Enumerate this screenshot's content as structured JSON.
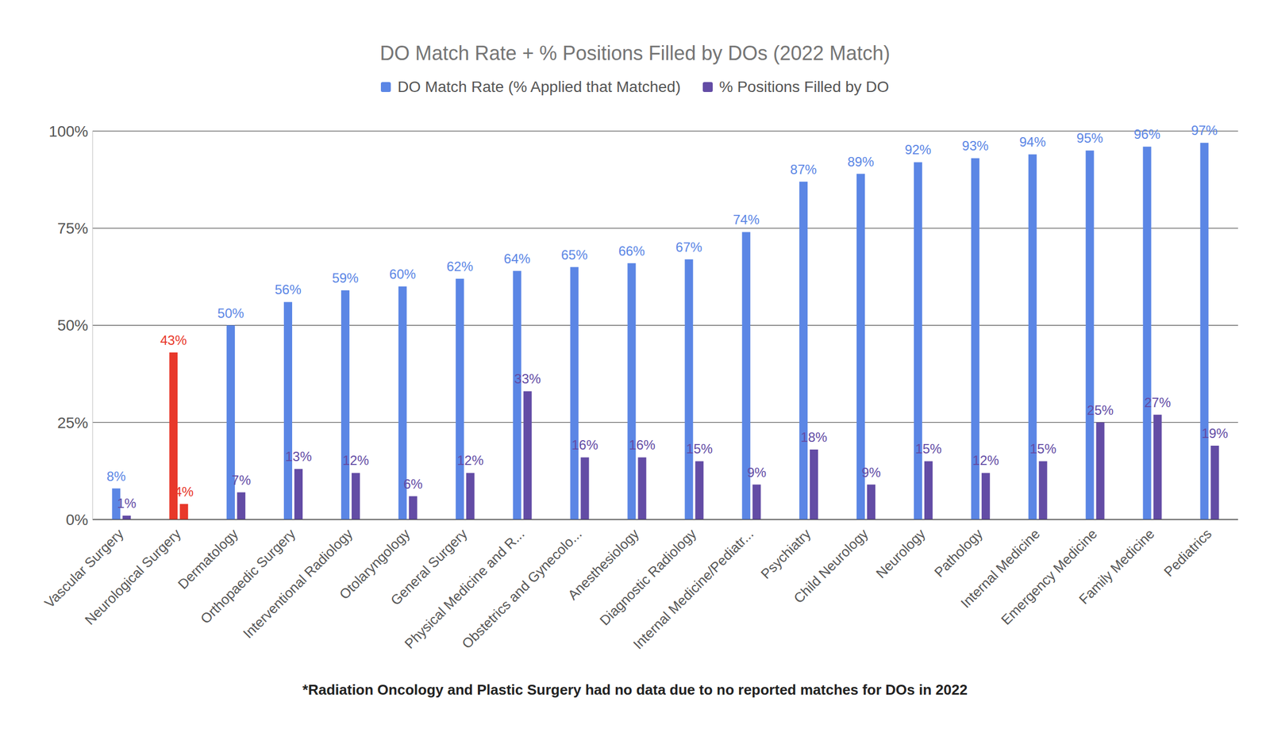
{
  "chart_data": {
    "type": "bar",
    "title": "DO Match Rate + % Positions Filled by DOs (2022 Match)",
    "categories": [
      "Vascular Surgery",
      "Neurological Surgery",
      "Dermatology",
      "Orthopaedic Surgery",
      "Interventional Radiology",
      "Otolaryngology",
      "General Surgery",
      "Physical Medicine and R...",
      "Obstetrics and Gynecolo...",
      "Anesthesiology",
      "Diagnostic Radiology",
      "Internal Medicine/Pediatr...",
      "Psychiatry",
      "Child Neurology",
      "Neurology",
      "Pathology",
      "Internal Medicine",
      "Emergency Medicine",
      "Family Medicine",
      "Pediatrics"
    ],
    "series": [
      {
        "name": "DO Match Rate (% Applied that Matched)",
        "color": "#5b86e5",
        "colors": [
          "#5b86e5",
          "#e8382a",
          "#5b86e5",
          "#5b86e5",
          "#5b86e5",
          "#5b86e5",
          "#5b86e5",
          "#5b86e5",
          "#5b86e5",
          "#5b86e5",
          "#5b86e5",
          "#5b86e5",
          "#5b86e5",
          "#5b86e5",
          "#5b86e5",
          "#5b86e5",
          "#5b86e5",
          "#5b86e5",
          "#5b86e5",
          "#5b86e5"
        ],
        "values": [
          8,
          43,
          50,
          56,
          59,
          60,
          62,
          64,
          65,
          66,
          67,
          74,
          87,
          89,
          92,
          93,
          94,
          95,
          96,
          97
        ],
        "value_labels": [
          "8%",
          "43%",
          "50%",
          "56%",
          "59%",
          "60%",
          "62%",
          "64%",
          "65%",
          "66%",
          "67%",
          "74%",
          "87%",
          "89%",
          "92%",
          "93%",
          "94%",
          "95%",
          "96%",
          "97%"
        ]
      },
      {
        "name": "% Positions Filled by DO",
        "color": "#634ca5",
        "colors": [
          "#634ca5",
          "#e8382a",
          "#634ca5",
          "#634ca5",
          "#634ca5",
          "#634ca5",
          "#634ca5",
          "#634ca5",
          "#634ca5",
          "#634ca5",
          "#634ca5",
          "#634ca5",
          "#634ca5",
          "#634ca5",
          "#634ca5",
          "#634ca5",
          "#634ca5",
          "#634ca5",
          "#634ca5",
          "#634ca5"
        ],
        "values": [
          1,
          4,
          7,
          13,
          12,
          6,
          12,
          33,
          16,
          16,
          15,
          9,
          18,
          9,
          15,
          12,
          15,
          25,
          27,
          19
        ],
        "value_labels": [
          "1%",
          "4%",
          "7%",
          "13%",
          "12%",
          "6%",
          "12%",
          "33%",
          "16%",
          "16%",
          "15%",
          "9%",
          "18%",
          "9%",
          "15%",
          "12%",
          "15%",
          "25%",
          "27%",
          "19%"
        ]
      }
    ],
    "ylim": [
      0,
      100
    ],
    "yticks": [
      {
        "value": 0,
        "label": "0%"
      },
      {
        "value": 25,
        "label": "25%"
      },
      {
        "value": 50,
        "label": "50%"
      },
      {
        "value": 75,
        "label": "75%"
      },
      {
        "value": 100,
        "label": "100%"
      }
    ],
    "grid": true,
    "legend": "top",
    "data_labels": true,
    "annotations": [
      "*Radiation Oncology and Plastic Surgery had no data due to no reported matches for DOs in 2022"
    ]
  }
}
